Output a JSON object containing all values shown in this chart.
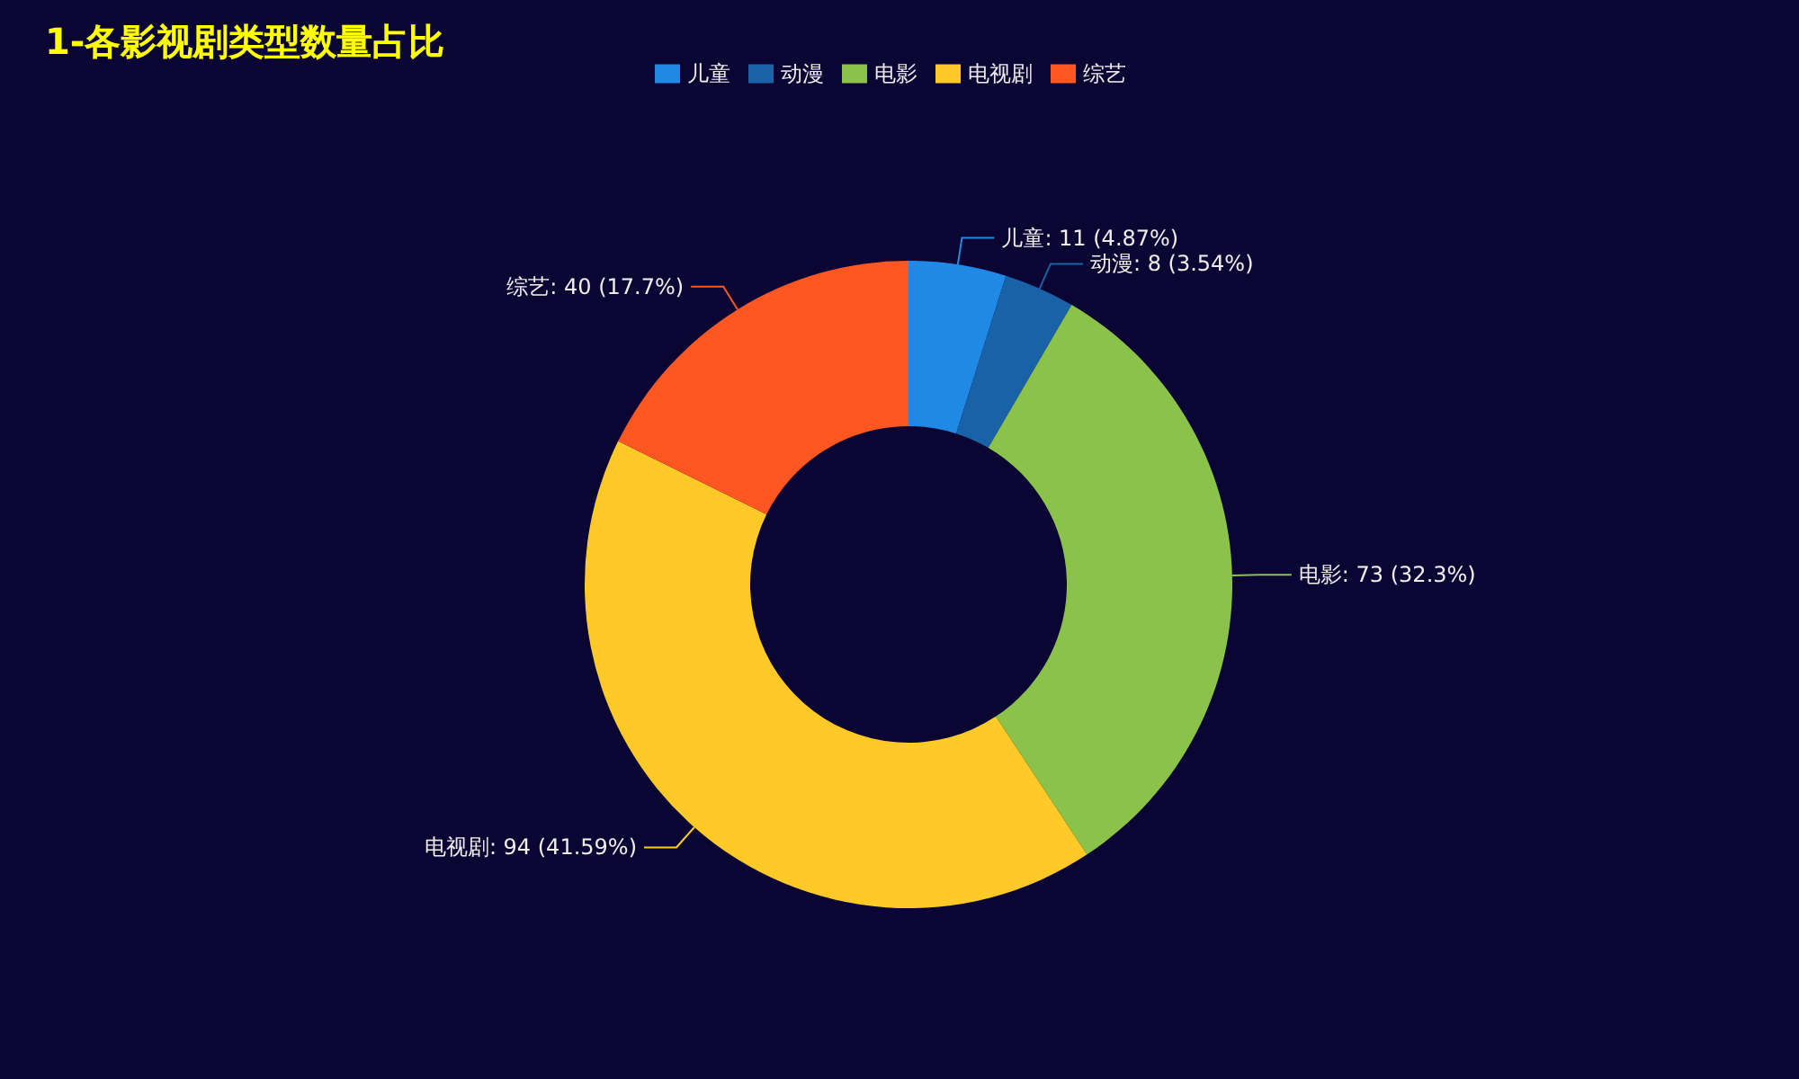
{
  "chart_data": {
    "type": "donut",
    "title": "1-各影视剧类型数量占比",
    "categories": [
      "儿童",
      "动漫",
      "电影",
      "电视剧",
      "综艺"
    ],
    "values": [
      11,
      8,
      73,
      94,
      40
    ],
    "colors": [
      "#2089e6",
      "#1a62a8",
      "#8bc34a",
      "#ffca28",
      "#ff5722"
    ],
    "value_labels": [
      "儿童: 11 (4.87%)",
      "动漫: 8 (3.54%)",
      "电影: 73 (32.3%)",
      "电视剧: 94 (41.59%)",
      "综艺: 40 (17.7%)"
    ],
    "legend": "top"
  }
}
